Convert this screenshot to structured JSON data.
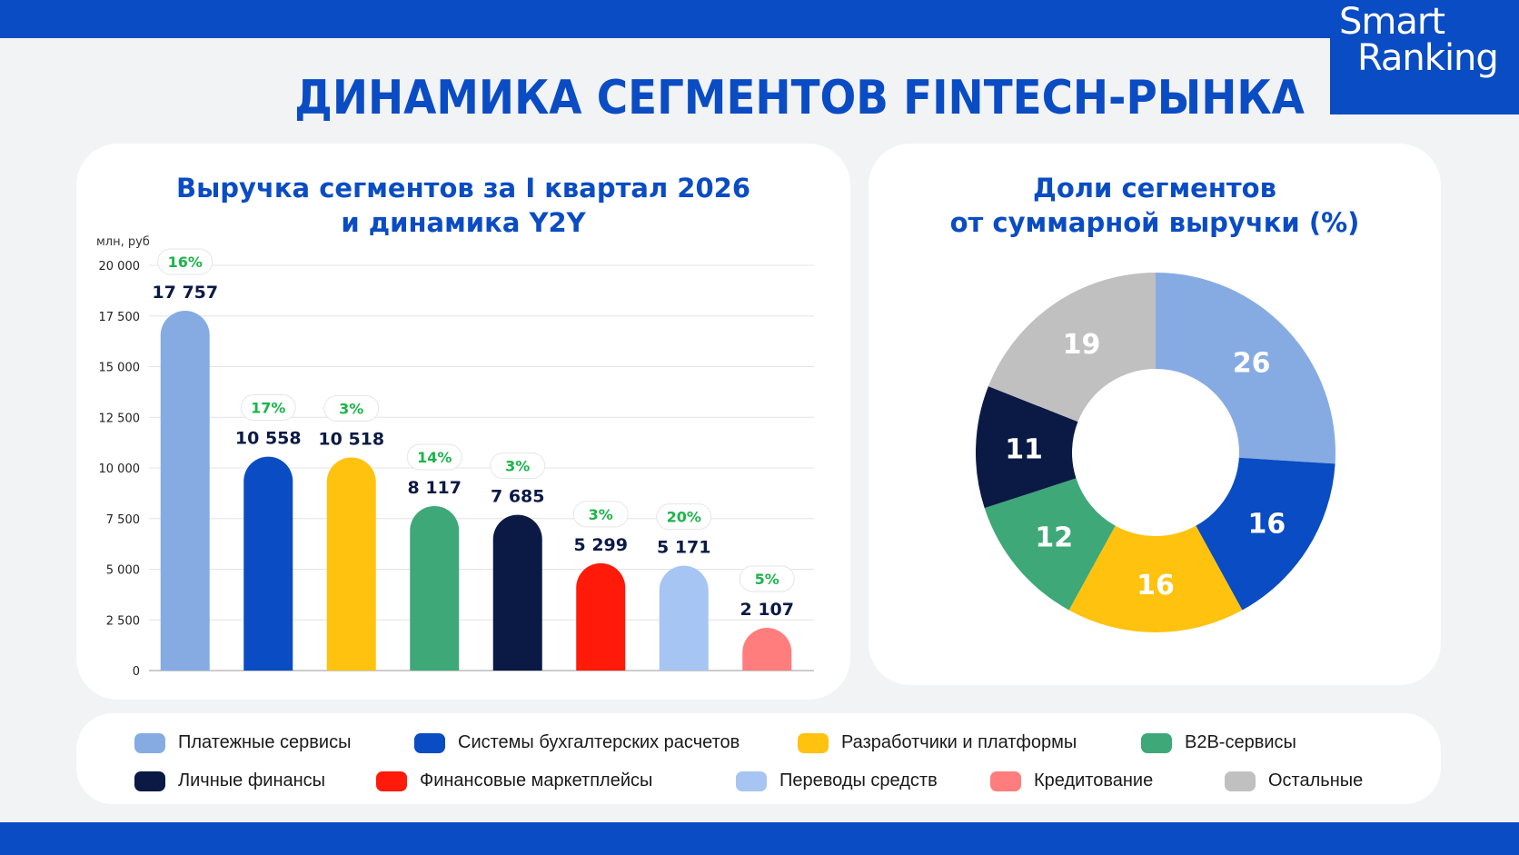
{
  "header": {
    "title": "ДИНАМИКА СЕГМЕНТОВ FINTECH-РЫНКА",
    "logo_line1": "Smart",
    "logo_line2": "Ranking"
  },
  "colors": {
    "brand": "#0a4cc3",
    "growth_text": "#1bb54a"
  },
  "bar_panel": {
    "title_line1": "Выручка сегментов за I квартал 2026",
    "title_line2": "и динамика Y2Y",
    "unit_label": "млн, руб"
  },
  "pie_panel": {
    "title_line1": "Доли сегментов",
    "title_line2": "от суммарной выручки (%)"
  },
  "chart_data": [
    {
      "type": "bar",
      "title": "Выручка сегментов за I квартал 2026 и динамика Y2Y",
      "ylabel": "млн, руб",
      "ylim": [
        0,
        20000
      ],
      "yticks": [
        0,
        2500,
        5000,
        7500,
        10000,
        12500,
        15000,
        17500,
        20000
      ],
      "ytick_labels": [
        "0",
        "2 500",
        "5 000",
        "7 500",
        "10 000",
        "12 500",
        "15 000",
        "17 500",
        "20 000"
      ],
      "grid": true,
      "categories": [
        "Платежные сервисы",
        "Системы бухгалтерских расчетов",
        "Разработчики и платформы",
        "B2B-сервисы",
        "Личные финансы",
        "Финансовые маркетплейсы",
        "Переводы средств",
        "Кредитование"
      ],
      "values": [
        17757,
        10558,
        10518,
        8117,
        7685,
        5299,
        5171,
        2107
      ],
      "value_labels": [
        "17 757",
        "10 558",
        "10 518",
        "8 117",
        "7 685",
        "5 299",
        "5 171",
        "2 107"
      ],
      "growth_labels": [
        "16%",
        "17%",
        "3%",
        "14%",
        "3%",
        "3%",
        "20%",
        "5%"
      ],
      "colors": [
        "#86abe3",
        "#0a4cc3",
        "#ffc20e",
        "#3ea878",
        "#0b1a45",
        "#ff1a0a",
        "#a6c5f2",
        "#ff7d7d"
      ]
    },
    {
      "type": "pie",
      "title": "Доли сегментов от суммарной выручки (%)",
      "donut": true,
      "labels": [
        "Платежные сервисы",
        "Системы бухгалтерских расчетов",
        "Разработчики и платформы",
        "B2B-сервисы",
        "Личные финансы",
        "Остальные"
      ],
      "values": [
        26,
        16,
        16,
        12,
        11,
        19
      ],
      "value_labels": [
        "26",
        "16",
        "16",
        "12",
        "11",
        "19"
      ],
      "colors": [
        "#86abe3",
        "#0a4cc3",
        "#ffc20e",
        "#3ea878",
        "#0b1a45",
        "#c0c0c0"
      ]
    }
  ],
  "legend": [
    {
      "label": "Платежные сервисы",
      "color": "#86abe3"
    },
    {
      "label": "Системы бухгалтерских расчетов",
      "color": "#0a4cc3"
    },
    {
      "label": "Разработчики и платформы",
      "color": "#ffc20e"
    },
    {
      "label": "B2B-сервисы",
      "color": "#3ea878"
    },
    {
      "label": "Личные финансы",
      "color": "#0b1a45"
    },
    {
      "label": "Финансовые маркетплейсы",
      "color": "#ff1a0a"
    },
    {
      "label": "Переводы средств",
      "color": "#a6c5f2"
    },
    {
      "label": "Кредитование",
      "color": "#ff7d7d"
    },
    {
      "label": "Остальные",
      "color": "#c0c0c0"
    }
  ]
}
